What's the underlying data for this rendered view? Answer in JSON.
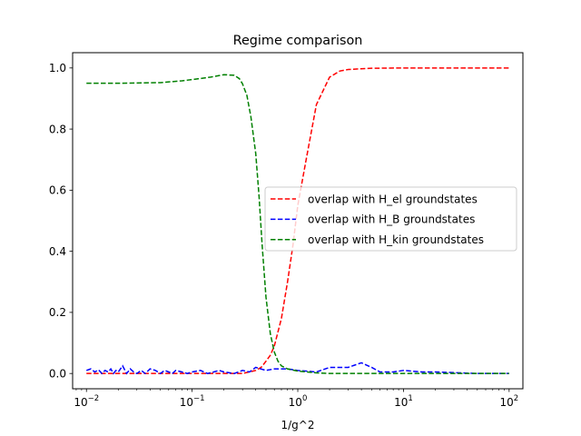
{
  "chart_data": {
    "type": "line",
    "title": "Regime comparison",
    "xlabel": "1/g^2",
    "ylabel": "",
    "xscale": "log",
    "xlim": [
      0.0074,
      135
    ],
    "ylim": [
      -0.05,
      1.05
    ],
    "xticks": [
      0.01,
      0.1,
      1,
      10,
      100
    ],
    "xtick_bases": [
      "10",
      "10",
      "10",
      "10",
      "10"
    ],
    "xtick_exps": [
      "−2",
      "−1",
      "0",
      "1",
      "2"
    ],
    "yticks": [
      0.0,
      0.2,
      0.4,
      0.6,
      0.8,
      1.0
    ],
    "ytick_labels": [
      "0.0",
      "0.2",
      "0.4",
      "0.6",
      "0.8",
      "1.0"
    ],
    "grid": false,
    "legend_position": "center-right",
    "series": [
      {
        "name": "overlap with H_el groundstates",
        "color": "#ff0000",
        "linestyle": "dashed",
        "x": [
          0.01,
          0.02,
          0.05,
          0.1,
          0.2,
          0.3,
          0.4,
          0.45,
          0.5,
          0.55,
          0.6,
          0.7,
          0.8,
          0.9,
          1.0,
          1.2,
          1.5,
          2.0,
          2.5,
          3.0,
          5.0,
          10,
          100
        ],
        "y": [
          0.0,
          0.0,
          0.0,
          0.0,
          0.0,
          0.0,
          0.01,
          0.02,
          0.04,
          0.06,
          0.09,
          0.18,
          0.3,
          0.42,
          0.55,
          0.7,
          0.88,
          0.97,
          0.99,
          0.995,
          0.999,
          1.0,
          1.0
        ]
      },
      {
        "name": "overlap with H_B groundstates",
        "color": "#0000ff",
        "linestyle": "dashed",
        "x": [
          0.01,
          0.011,
          0.012,
          0.013,
          0.014,
          0.015,
          0.016,
          0.017,
          0.018,
          0.019,
          0.02,
          0.022,
          0.024,
          0.026,
          0.028,
          0.03,
          0.033,
          0.036,
          0.04,
          0.045,
          0.05,
          0.055,
          0.06,
          0.065,
          0.07,
          0.08,
          0.09,
          0.1,
          0.12,
          0.14,
          0.16,
          0.18,
          0.2,
          0.25,
          0.3,
          0.35,
          0.4,
          0.5,
          0.6,
          0.8,
          1.0,
          1.5,
          2.0,
          3.0,
          4.0,
          5.0,
          6.0,
          8.0,
          10,
          15,
          20,
          50,
          100
        ],
        "y": [
          0.01,
          0.015,
          0.005,
          0.012,
          0.0,
          0.01,
          0.005,
          0.015,
          0.0,
          0.01,
          0.005,
          0.025,
          0.0,
          0.015,
          0.005,
          0.0,
          0.01,
          0.0,
          0.015,
          0.01,
          0.0,
          0.01,
          0.005,
          0.0,
          0.01,
          0.005,
          0.0,
          0.005,
          0.01,
          0.0,
          0.005,
          0.01,
          0.005,
          0.0,
          0.01,
          0.005,
          0.02,
          0.01,
          0.015,
          0.015,
          0.01,
          0.005,
          0.02,
          0.02,
          0.035,
          0.02,
          0.005,
          0.005,
          0.01,
          0.005,
          0.005,
          0.0,
          0.0
        ]
      },
      {
        "name": "overlap with H_kin groundstates",
        "color": "#008000",
        "linestyle": "dashed",
        "x": [
          0.01,
          0.02,
          0.05,
          0.08,
          0.1,
          0.15,
          0.2,
          0.25,
          0.28,
          0.3,
          0.33,
          0.36,
          0.4,
          0.43,
          0.46,
          0.5,
          0.55,
          0.6,
          0.65,
          0.7,
          0.8,
          1.0,
          1.5,
          2.0,
          5.0,
          10,
          100
        ],
        "y": [
          0.95,
          0.95,
          0.952,
          0.958,
          0.962,
          0.97,
          0.978,
          0.976,
          0.965,
          0.948,
          0.91,
          0.84,
          0.72,
          0.58,
          0.42,
          0.25,
          0.13,
          0.07,
          0.04,
          0.025,
          0.015,
          0.008,
          0.002,
          0.0,
          0.0,
          0.0,
          0.0
        ]
      }
    ]
  }
}
